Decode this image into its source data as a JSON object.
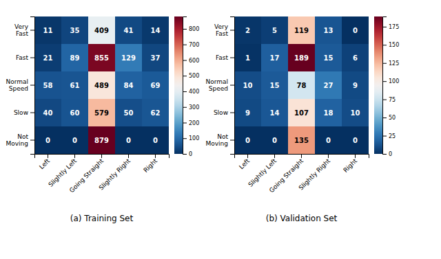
{
  "chart_data": [
    {
      "type": "heatmap",
      "subtitle": "(a) Training Set",
      "categories": [
        "Left",
        "Slightly Left",
        "Going Straight",
        "Slightly Right",
        "Right"
      ],
      "y_categories": [
        "Very\nFast",
        "Fast",
        "Normal\nSpeed",
        "Slow",
        "Not\nMoving"
      ],
      "values": [
        [
          11,
          35,
          409,
          41,
          14
        ],
        [
          21,
          89,
          855,
          129,
          37
        ],
        [
          58,
          61,
          489,
          84,
          69
        ],
        [
          40,
          60,
          579,
          50,
          62
        ],
        [
          0,
          0,
          879,
          0,
          0
        ]
      ],
      "color_range": [
        0,
        879
      ],
      "color_ticks": [
        0,
        100,
        200,
        300,
        400,
        500,
        600,
        700,
        800
      ],
      "data_labels": true
    },
    {
      "type": "heatmap",
      "subtitle": "(b) Validation Set",
      "categories": [
        "Left",
        "Slightly Left",
        "Going Straight",
        "Slightly Right",
        "Right"
      ],
      "y_categories": [
        "Very\nFast",
        "Fast",
        "Normal\nSpeed",
        "Slow",
        "Not\nMoving"
      ],
      "values": [
        [
          2,
          5,
          119,
          13,
          0
        ],
        [
          1,
          17,
          189,
          15,
          6
        ],
        [
          10,
          15,
          78,
          27,
          9
        ],
        [
          9,
          14,
          107,
          18,
          10
        ],
        [
          0,
          0,
          135,
          0,
          0
        ]
      ],
      "color_range": [
        0,
        189
      ],
      "color_ticks": [
        0,
        25,
        50,
        75,
        100,
        125,
        150,
        175
      ],
      "data_labels": true
    }
  ]
}
